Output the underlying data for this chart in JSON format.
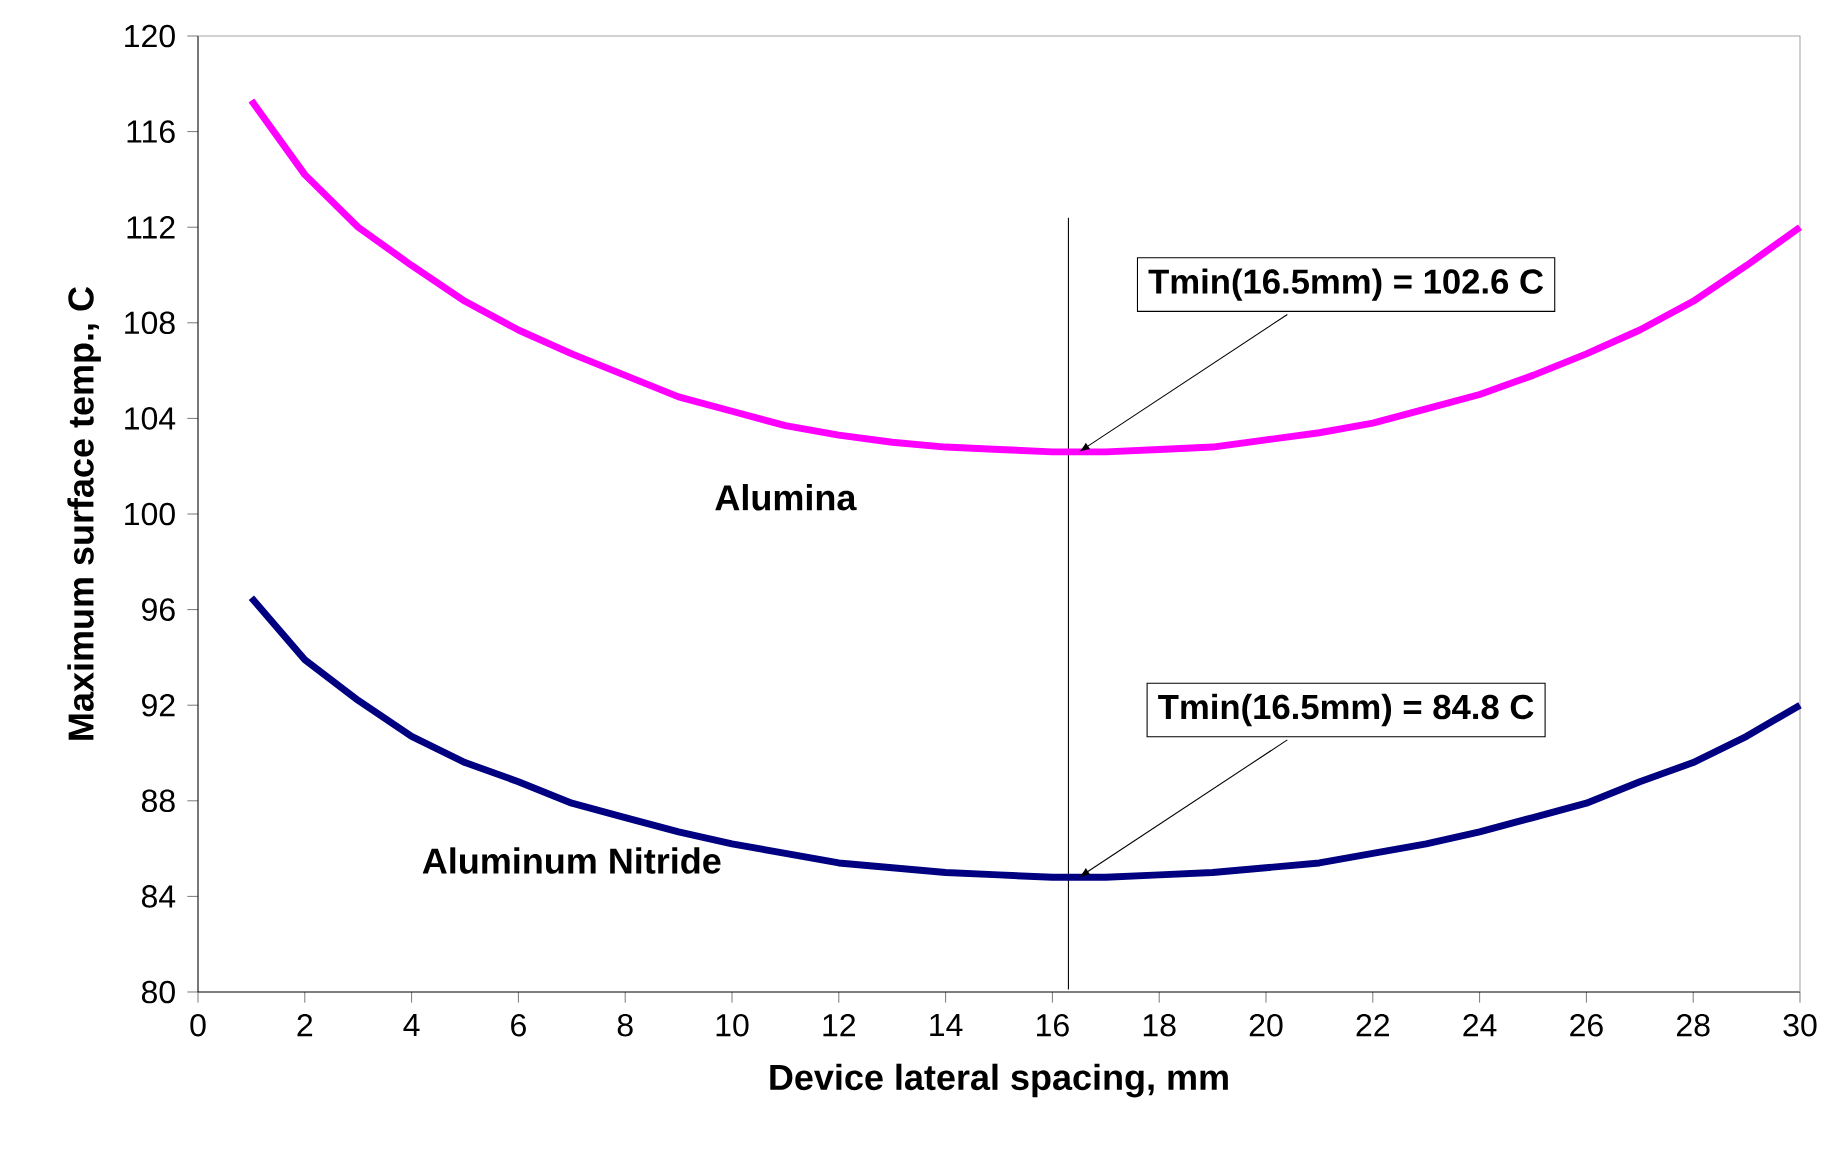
{
  "chart_data": {
    "type": "line",
    "xlabel": "Device lateral spacing, mm",
    "ylabel": "Maximum surface temp., C",
    "x": [
      1,
      2,
      3,
      4,
      5,
      6,
      7,
      8,
      9,
      10,
      11,
      12,
      13,
      14,
      15,
      16,
      17,
      18,
      19,
      20,
      21,
      22,
      23,
      24,
      25,
      26,
      27,
      28,
      29,
      30
    ],
    "series": [
      {
        "name": "Alumina",
        "color": "#ff00ff",
        "values": [
          117.3,
          114.2,
          112.0,
          110.4,
          108.9,
          107.7,
          106.7,
          105.8,
          104.9,
          104.3,
          103.7,
          103.3,
          103.0,
          102.8,
          102.7,
          102.6,
          102.6,
          102.7,
          102.8,
          103.1,
          103.4,
          103.8,
          104.4,
          105.0,
          105.8,
          106.7,
          107.7,
          108.9,
          110.4,
          112.0
        ]
      },
      {
        "name": "Aluminum Nitride",
        "color": "#000080",
        "values": [
          96.5,
          93.9,
          92.2,
          90.7,
          89.6,
          88.8,
          87.9,
          87.3,
          86.7,
          86.2,
          85.8,
          85.4,
          85.2,
          85.0,
          84.9,
          84.8,
          84.8,
          84.9,
          85.0,
          85.2,
          85.4,
          85.8,
          86.2,
          86.7,
          87.3,
          87.9,
          88.8,
          89.6,
          90.7,
          92.0
        ]
      }
    ],
    "xlim": [
      0,
      30
    ],
    "xticks": [
      0,
      2,
      4,
      6,
      8,
      10,
      12,
      14,
      16,
      18,
      20,
      22,
      24,
      26,
      28,
      30
    ],
    "ylim": [
      80,
      120
    ],
    "yticks": [
      80,
      84,
      88,
      92,
      96,
      100,
      104,
      108,
      112,
      116,
      120
    ],
    "ref_lines": [
      {
        "axis": "x",
        "value": 16.3,
        "color": "#000000"
      }
    ],
    "annotations": [
      {
        "text": "Tmin(16.5mm) = 102.6 C",
        "x": 16.5,
        "y": 102.6
      },
      {
        "text": "Tmin(16.5mm) = 84.8 C",
        "x": 16.5,
        "y": 84.8
      }
    ],
    "grid": false,
    "marker": "none",
    "line_style": "solid"
  }
}
